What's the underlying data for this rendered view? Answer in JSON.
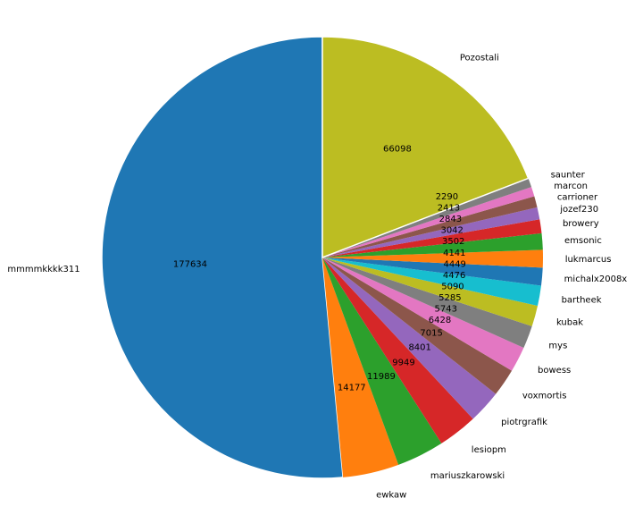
{
  "chart_data": {
    "type": "pie",
    "title": "",
    "start_angle_deg": 90,
    "direction": "counterclockwise",
    "slices": [
      {
        "label": "mmmmkkkk311",
        "value": 177634,
        "color": "#1f77b4"
      },
      {
        "label": "ewkaw",
        "value": 14177,
        "color": "#ff7f0e"
      },
      {
        "label": "mariuszkarowski",
        "value": 11989,
        "color": "#2ca02c"
      },
      {
        "label": "lesiopm",
        "value": 9949,
        "color": "#d62728"
      },
      {
        "label": "piotrgrafik",
        "value": 8401,
        "color": "#9467bd"
      },
      {
        "label": "voxmortis",
        "value": 7015,
        "color": "#8c564b"
      },
      {
        "label": "bowess",
        "value": 6428,
        "color": "#e377c2"
      },
      {
        "label": "mys",
        "value": 5743,
        "color": "#7f7f7f"
      },
      {
        "label": "kubak",
        "value": 5285,
        "color": "#bcbd22"
      },
      {
        "label": "bartheek",
        "value": 5090,
        "color": "#17becf"
      },
      {
        "label": "michalx2008x",
        "value": 4476,
        "color": "#1f77b4"
      },
      {
        "label": "lukmarcus",
        "value": 4449,
        "color": "#ff7f0e"
      },
      {
        "label": "emsonic",
        "value": 4141,
        "color": "#2ca02c"
      },
      {
        "label": "browery",
        "value": 3502,
        "color": "#d62728"
      },
      {
        "label": "jozef230",
        "value": 3042,
        "color": "#9467bd"
      },
      {
        "label": "carrioner",
        "value": 2843,
        "color": "#8c564b"
      },
      {
        "label": "marcon",
        "value": 2413,
        "color": "#e377c2"
      },
      {
        "label": "saunter",
        "value": 2290,
        "color": "#7f7f7f"
      },
      {
        "label": "Pozostali",
        "value": 66098,
        "color": "#bcbd22"
      }
    ]
  }
}
